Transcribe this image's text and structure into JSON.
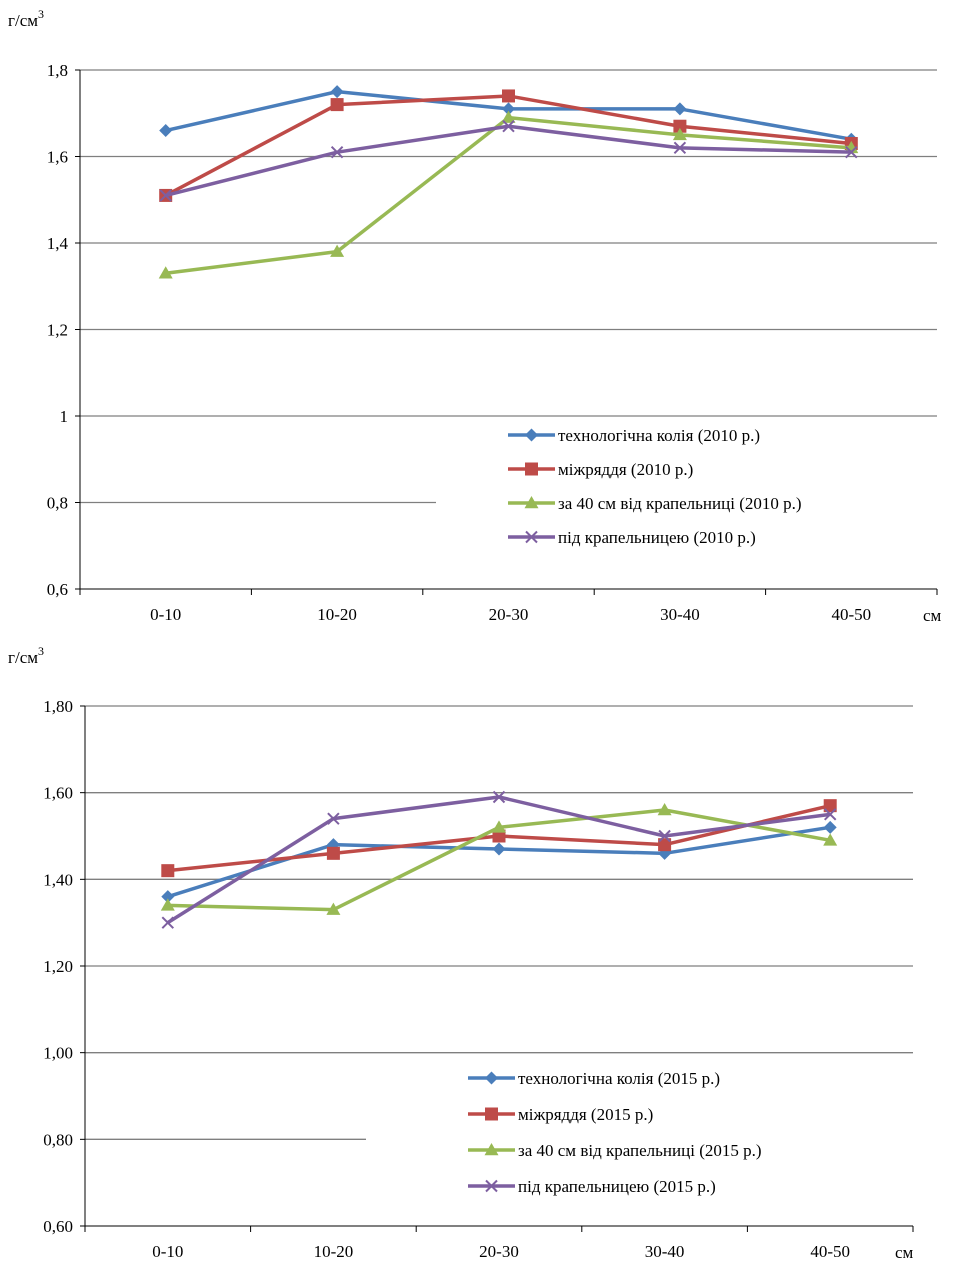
{
  "colors": {
    "axis": "#000000",
    "grid": "#7f7f7f",
    "series": [
      "#4a7ebb",
      "#be4b48",
      "#98b954",
      "#7d5fa0"
    ]
  },
  "markers": [
    "diamond",
    "square",
    "triangle",
    "x"
  ],
  "chart_data": [
    {
      "type": "line",
      "ylabel": "г/см",
      "ylabel_sup": "3",
      "xlabel": "см",
      "categories": [
        "0-10",
        "10-20",
        "20-30",
        "30-40",
        "40-50"
      ],
      "ylim": [
        0.6,
        1.8
      ],
      "yticks": [
        0.6,
        0.8,
        1.0,
        1.2,
        1.4,
        1.6,
        1.8
      ],
      "ytick_labels": [
        "0,6",
        "0,8",
        "1",
        "1,2",
        "1,4",
        "1,6",
        "1,8"
      ],
      "grid": true,
      "legend_position": "lower-right",
      "series": [
        {
          "name": "технологічна колія (2010 р.)",
          "values": [
            1.66,
            1.75,
            1.71,
            1.71,
            1.64
          ]
        },
        {
          "name": "міжряддя (2010 р.)",
          "values": [
            1.51,
            1.72,
            1.74,
            1.67,
            1.63
          ]
        },
        {
          "name": "за 40 см від крапельниці (2010 р.)",
          "values": [
            1.33,
            1.38,
            1.69,
            1.65,
            1.62
          ]
        },
        {
          "name": "під крапельницею (2010 р.)",
          "values": [
            1.51,
            1.61,
            1.67,
            1.62,
            1.61
          ]
        }
      ]
    },
    {
      "type": "line",
      "ylabel": "г/см",
      "ylabel_sup": "3",
      "xlabel": "см",
      "categories": [
        "0-10",
        "10-20",
        "20-30",
        "30-40",
        "40-50"
      ],
      "ylim": [
        0.6,
        1.8
      ],
      "yticks": [
        0.6,
        0.8,
        1.0,
        1.2,
        1.4,
        1.6,
        1.8
      ],
      "ytick_labels": [
        "0,60",
        "0,80",
        "1,00",
        "1,20",
        "1,40",
        "1,60",
        "1,80"
      ],
      "grid": true,
      "legend_position": "lower-right",
      "series": [
        {
          "name": "технологічна колія (2015 р.)",
          "values": [
            1.36,
            1.48,
            1.47,
            1.46,
            1.52
          ]
        },
        {
          "name": "міжряддя (2015 р.)",
          "values": [
            1.42,
            1.46,
            1.5,
            1.48,
            1.57
          ]
        },
        {
          "name": "за 40 см від крапельниці (2015 р.)",
          "values": [
            1.34,
            1.33,
            1.52,
            1.56,
            1.49
          ]
        },
        {
          "name": "під крапельницею (2015 р.)",
          "values": [
            1.3,
            1.54,
            1.59,
            1.5,
            1.55
          ]
        }
      ]
    }
  ]
}
